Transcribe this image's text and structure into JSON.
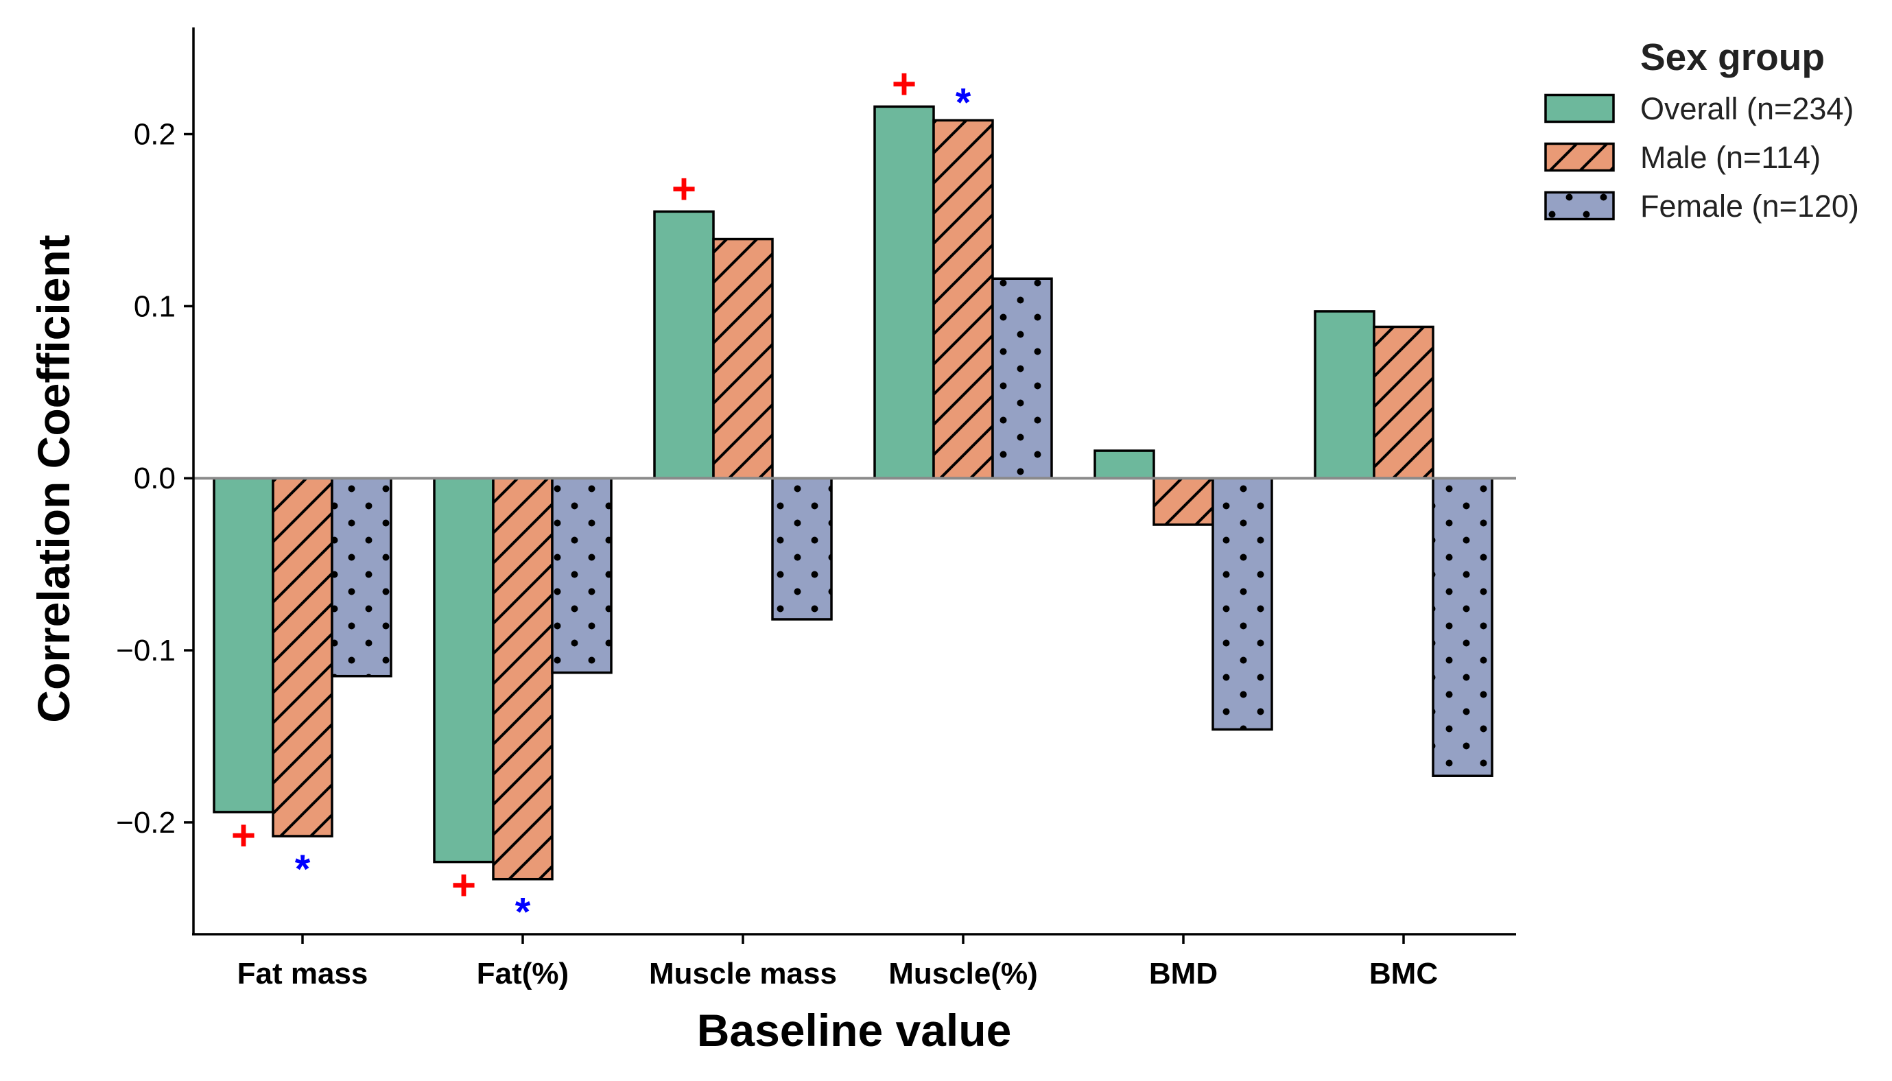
{
  "chart_data": {
    "type": "bar",
    "title": "",
    "xlabel": "Baseline value",
    "ylabel": "Correlation Coefficient",
    "categories": [
      "Fat mass",
      "Fat(%)",
      "Muscle mass",
      "Muscle(%)",
      "BMD",
      "BMC"
    ],
    "ylim": [
      -0.265,
      0.262
    ],
    "yticks": [
      -0.2,
      -0.1,
      0.0,
      0.1,
      0.2
    ],
    "ytick_labels": [
      "−0.2",
      "−0.1",
      "0.0",
      "0.1",
      "0.2"
    ],
    "legend": {
      "title": "Sex group",
      "placement": "top-right outside"
    },
    "series": [
      {
        "name": "Overall (n=234)",
        "color": "#6db89c",
        "pattern": "solid",
        "values": [
          -0.194,
          -0.223,
          0.155,
          0.216,
          0.016,
          0.097
        ]
      },
      {
        "name": "Male (n=114)",
        "color": "#e99a76",
        "pattern": "diagonal-hatch",
        "values": [
          -0.208,
          -0.233,
          0.139,
          0.208,
          -0.027,
          0.088
        ]
      },
      {
        "name": "Female (n=120)",
        "color": "#95a1c4",
        "pattern": "dots",
        "values": [
          -0.115,
          -0.113,
          -0.082,
          0.116,
          -0.146,
          -0.173
        ]
      }
    ],
    "annotations": [
      {
        "category": "Fat mass",
        "series": "Overall (n=234)",
        "symbol": "+",
        "color": "#ff0000"
      },
      {
        "category": "Fat mass",
        "series": "Male (n=114)",
        "symbol": "*",
        "color": "#0000ff"
      },
      {
        "category": "Fat(%)",
        "series": "Overall (n=234)",
        "symbol": "+",
        "color": "#ff0000"
      },
      {
        "category": "Fat(%)",
        "series": "Male (n=114)",
        "symbol": "*",
        "color": "#0000ff"
      },
      {
        "category": "Muscle mass",
        "series": "Overall (n=234)",
        "symbol": "+",
        "color": "#ff0000"
      },
      {
        "category": "Muscle(%)",
        "series": "Overall (n=234)",
        "symbol": "+",
        "color": "#ff0000"
      },
      {
        "category": "Muscle(%)",
        "series": "Male (n=114)",
        "symbol": "*",
        "color": "#0000ff"
      }
    ]
  }
}
